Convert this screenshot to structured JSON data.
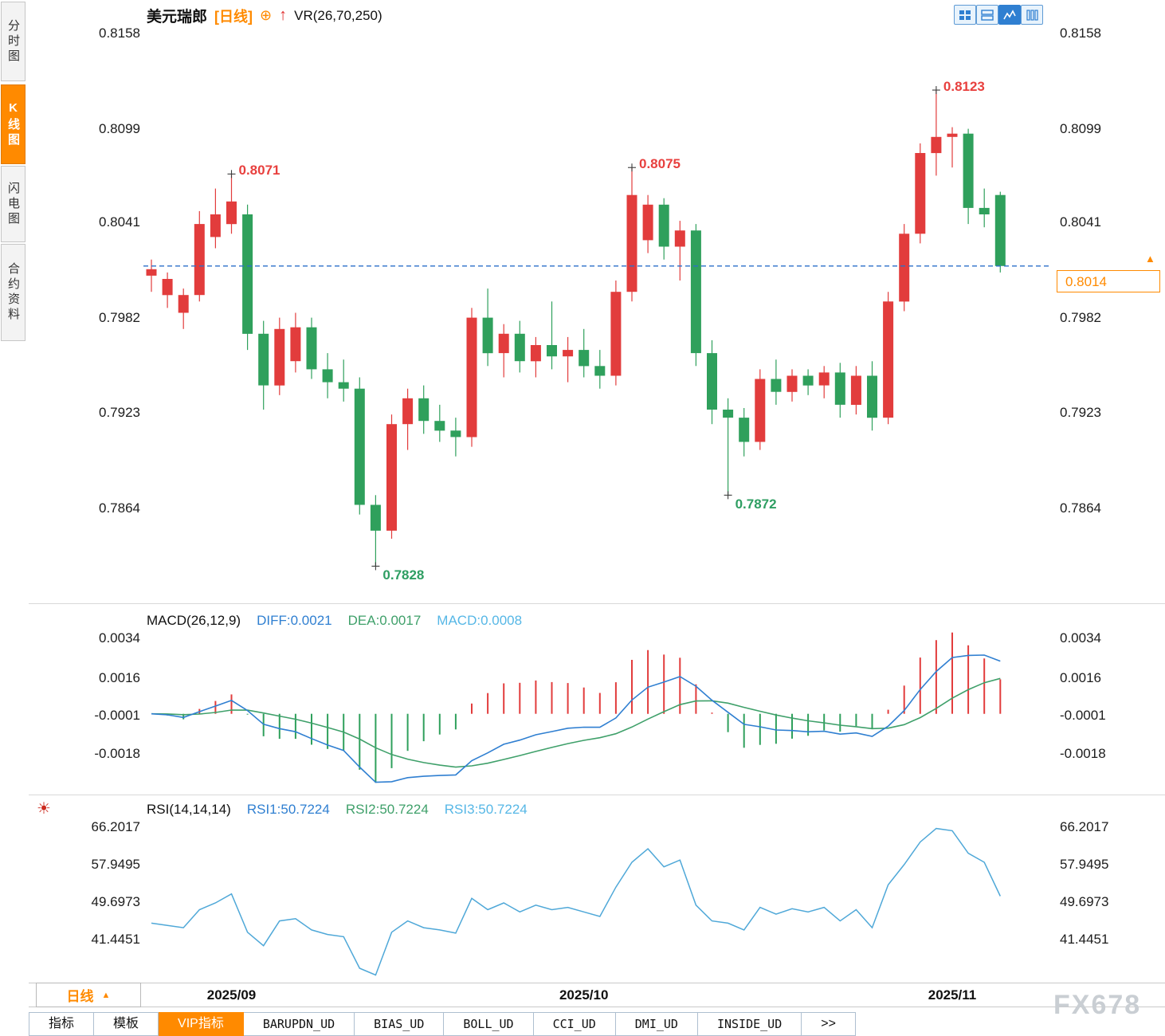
{
  "header": {
    "symbol": "美元瑞郎",
    "period_tag": "[日线]",
    "plus_icon": "⊕",
    "up_arrow": "↑",
    "indicator_label": "VR(26,70,250)"
  },
  "sidebar": {
    "tabs": [
      {
        "label": "分时图",
        "active": false
      },
      {
        "label": "K线图",
        "active": true
      },
      {
        "label": "闪电图",
        "active": false
      },
      {
        "label": "合约资料",
        "active": false
      }
    ]
  },
  "price_tag": {
    "value": "0.8014",
    "arrow": "▲"
  },
  "macd_panel": {
    "title": "MACD(26,12,9)",
    "diff_label": "DIFF:0.0021",
    "dea_label": "DEA:0.0017",
    "macd_label": "MACD:0.0008"
  },
  "rsi_panel": {
    "title": "RSI(14,14,14)",
    "rsi1_label": "RSI1:50.7224",
    "rsi2_label": "RSI2:50.7224",
    "rsi3_label": "RSI3:50.7224"
  },
  "xaxis": {
    "period_button_label": "日线",
    "period_button_arrow": "▲"
  },
  "bottom_tabs": [
    {
      "label": "指标",
      "active": false,
      "mono": false
    },
    {
      "label": "模板",
      "active": false,
      "mono": false
    },
    {
      "label": "VIP指标",
      "active": true,
      "mono": false
    },
    {
      "label": "BARUPDN_UD",
      "active": false,
      "mono": true
    },
    {
      "label": "BIAS_UD",
      "active": false,
      "mono": true
    },
    {
      "label": "BOLL_UD",
      "active": false,
      "mono": true
    },
    {
      "label": "CCI_UD",
      "active": false,
      "mono": true
    },
    {
      "label": "DMI_UD",
      "active": false,
      "mono": true
    },
    {
      "label": "INSIDE_UD",
      "active": false,
      "mono": true
    },
    {
      "label": ">>",
      "active": false,
      "mono": false
    }
  ],
  "watermark": "FX678",
  "colors": {
    "accent_orange": "#ff8a00",
    "up_red": "#e23c3c",
    "down_green": "#2fa05c",
    "line_blue": "#2f7fd1",
    "line_green": "#3fa06a",
    "line_cyan": "#56b7e6",
    "rsi_line": "#4fa8d8",
    "dashed_blue": "#2b6fc9",
    "annotation_red": "#e8403e",
    "annotation_green": "#2e9e62"
  },
  "chart_data": {
    "type": "candlestick",
    "title": "美元瑞郎 日线 (USD/CHF daily) with VR(26,70,250)",
    "y_domain": [
      0.7806,
      0.8164
    ],
    "y_axis_labels": [
      "0.8158",
      "0.8099",
      "0.8041",
      "0.7982",
      "0.7923",
      "0.7864"
    ],
    "current_price": 0.8014,
    "dates": [
      "2025/08/25",
      "2025/08/26",
      "2025/08/27",
      "2025/08/28",
      "2025/08/29",
      "2025/09/01",
      "2025/09/02",
      "2025/09/03",
      "2025/09/04",
      "2025/09/05",
      "2025/09/08",
      "2025/09/09",
      "2025/09/10",
      "2025/09/11",
      "2025/09/12",
      "2025/09/15",
      "2025/09/16",
      "2025/09/17",
      "2025/09/18",
      "2025/09/19",
      "2025/09/22",
      "2025/09/23",
      "2025/09/24",
      "2025/09/25",
      "2025/09/26",
      "2025/09/29",
      "2025/09/30",
      "2025/10/01",
      "2025/10/02",
      "2025/10/03",
      "2025/10/06",
      "2025/10/07",
      "2025/10/08",
      "2025/10/09",
      "2025/10/10",
      "2025/10/13",
      "2025/10/14",
      "2025/10/15",
      "2025/10/16",
      "2025/10/17",
      "2025/10/20",
      "2025/10/21",
      "2025/10/22",
      "2025/10/23",
      "2025/10/24",
      "2025/10/27",
      "2025/10/28",
      "2025/10/29",
      "2025/10/30",
      "2025/10/31",
      "2025/11/03",
      "2025/11/04",
      "2025/11/05",
      "2025/11/06"
    ],
    "ohlc": [
      [
        0.8008,
        0.8018,
        0.7998,
        0.8012
      ],
      [
        0.7996,
        0.801,
        0.7988,
        0.8006
      ],
      [
        0.7985,
        0.8,
        0.7975,
        0.7996
      ],
      [
        0.7996,
        0.8048,
        0.7992,
        0.804
      ],
      [
        0.8032,
        0.8062,
        0.8025,
        0.8046
      ],
      [
        0.804,
        0.8071,
        0.8034,
        0.8054
      ],
      [
        0.8046,
        0.8052,
        0.7962,
        0.7972
      ],
      [
        0.7972,
        0.798,
        0.7925,
        0.794
      ],
      [
        0.794,
        0.7982,
        0.7934,
        0.7975
      ],
      [
        0.7955,
        0.7985,
        0.7948,
        0.7976
      ],
      [
        0.7976,
        0.7982,
        0.7944,
        0.795
      ],
      [
        0.795,
        0.796,
        0.7932,
        0.7942
      ],
      [
        0.7942,
        0.7956,
        0.793,
        0.7938
      ],
      [
        0.7938,
        0.7945,
        0.786,
        0.7866
      ],
      [
        0.7866,
        0.7872,
        0.7828,
        0.785
      ],
      [
        0.785,
        0.7922,
        0.7845,
        0.7916
      ],
      [
        0.7916,
        0.7938,
        0.79,
        0.7932
      ],
      [
        0.7932,
        0.794,
        0.791,
        0.7918
      ],
      [
        0.7918,
        0.7928,
        0.7905,
        0.7912
      ],
      [
        0.7912,
        0.792,
        0.7896,
        0.7908
      ],
      [
        0.7908,
        0.7988,
        0.7902,
        0.7982
      ],
      [
        0.7982,
        0.8,
        0.7952,
        0.796
      ],
      [
        0.796,
        0.7978,
        0.7945,
        0.7972
      ],
      [
        0.7972,
        0.798,
        0.7948,
        0.7955
      ],
      [
        0.7955,
        0.797,
        0.7945,
        0.7965
      ],
      [
        0.7965,
        0.7992,
        0.795,
        0.7958
      ],
      [
        0.7958,
        0.797,
        0.7942,
        0.7962
      ],
      [
        0.7962,
        0.7975,
        0.7945,
        0.7952
      ],
      [
        0.7952,
        0.7962,
        0.7938,
        0.7946
      ],
      [
        0.7946,
        0.8005,
        0.794,
        0.7998
      ],
      [
        0.7998,
        0.8075,
        0.7992,
        0.8058
      ],
      [
        0.803,
        0.8058,
        0.8022,
        0.8052
      ],
      [
        0.8052,
        0.8056,
        0.8018,
        0.8026
      ],
      [
        0.8026,
        0.8042,
        0.8005,
        0.8036
      ],
      [
        0.8036,
        0.804,
        0.7952,
        0.796
      ],
      [
        0.796,
        0.7968,
        0.7916,
        0.7925
      ],
      [
        0.7925,
        0.7932,
        0.7872,
        0.792
      ],
      [
        0.792,
        0.7926,
        0.7896,
        0.7905
      ],
      [
        0.7905,
        0.795,
        0.79,
        0.7944
      ],
      [
        0.7944,
        0.7956,
        0.7928,
        0.7936
      ],
      [
        0.7936,
        0.795,
        0.793,
        0.7946
      ],
      [
        0.7946,
        0.795,
        0.7934,
        0.794
      ],
      [
        0.794,
        0.7952,
        0.7932,
        0.7948
      ],
      [
        0.7948,
        0.7954,
        0.792,
        0.7928
      ],
      [
        0.7928,
        0.7952,
        0.7922,
        0.7946
      ],
      [
        0.7946,
        0.7955,
        0.7912,
        0.792
      ],
      [
        0.792,
        0.7998,
        0.7916,
        0.7992
      ],
      [
        0.7992,
        0.804,
        0.7986,
        0.8034
      ],
      [
        0.8034,
        0.809,
        0.8028,
        0.8084
      ],
      [
        0.8084,
        0.8123,
        0.807,
        0.8094
      ],
      [
        0.8094,
        0.81,
        0.8075,
        0.8096
      ],
      [
        0.8096,
        0.8099,
        0.804,
        0.805
      ],
      [
        0.805,
        0.8062,
        0.8038,
        0.8046
      ],
      [
        0.8058,
        0.806,
        0.801,
        0.8014
      ]
    ],
    "annotations": [
      {
        "index": 5,
        "price": 0.8071,
        "kind": "high",
        "label": "0.8071"
      },
      {
        "index": 14,
        "price": 0.7828,
        "kind": "low",
        "label": "0.7828"
      },
      {
        "index": 30,
        "price": 0.8075,
        "kind": "high",
        "label": "0.8075"
      },
      {
        "index": 36,
        "price": 0.7872,
        "kind": "low",
        "label": "0.7872"
      },
      {
        "index": 49,
        "price": 0.8123,
        "kind": "high",
        "label": "0.8123"
      }
    ],
    "x_ticks": [
      {
        "index": 5,
        "label": "2025/09"
      },
      {
        "index": 27,
        "label": "2025/10"
      },
      {
        "index": 50,
        "label": "2025/11"
      }
    ],
    "vr_params": [
      26,
      70,
      250
    ],
    "macd": {
      "type": "macd",
      "params": [
        26,
        12,
        9
      ],
      "diff": 0.0021,
      "dea": 0.0017,
      "macd": 0.0008,
      "y_axis_labels": [
        "0.0034",
        "0.0016",
        "-0.0001",
        "-0.0018"
      ],
      "y_domain": [
        -0.0035,
        0.0047
      ]
    },
    "rsi": {
      "type": "line",
      "params": [
        14,
        14,
        14
      ],
      "rsi1": 50.7224,
      "rsi2": 50.7224,
      "rsi3": 50.7224,
      "y_axis_labels": [
        "66.2017",
        "57.9495",
        "49.6973",
        "41.4451"
      ],
      "y_domain": [
        32,
        73
      ],
      "values": [
        45,
        44.5,
        44,
        48,
        49.5,
        51.5,
        43,
        40,
        45.5,
        46,
        43.5,
        42.5,
        42,
        35,
        33.5,
        43,
        45.5,
        44,
        43.5,
        42.8,
        50.5,
        48,
        49.5,
        47.5,
        49,
        48,
        48.5,
        47.5,
        46.5,
        53,
        58.5,
        61.5,
        57.5,
        59,
        49,
        45.5,
        45,
        43.5,
        48.5,
        47,
        48.2,
        47.5,
        48.5,
        45.5,
        48,
        44,
        53.5,
        58,
        63,
        66,
        65.5,
        60.5,
        58.5,
        51
      ]
    }
  }
}
